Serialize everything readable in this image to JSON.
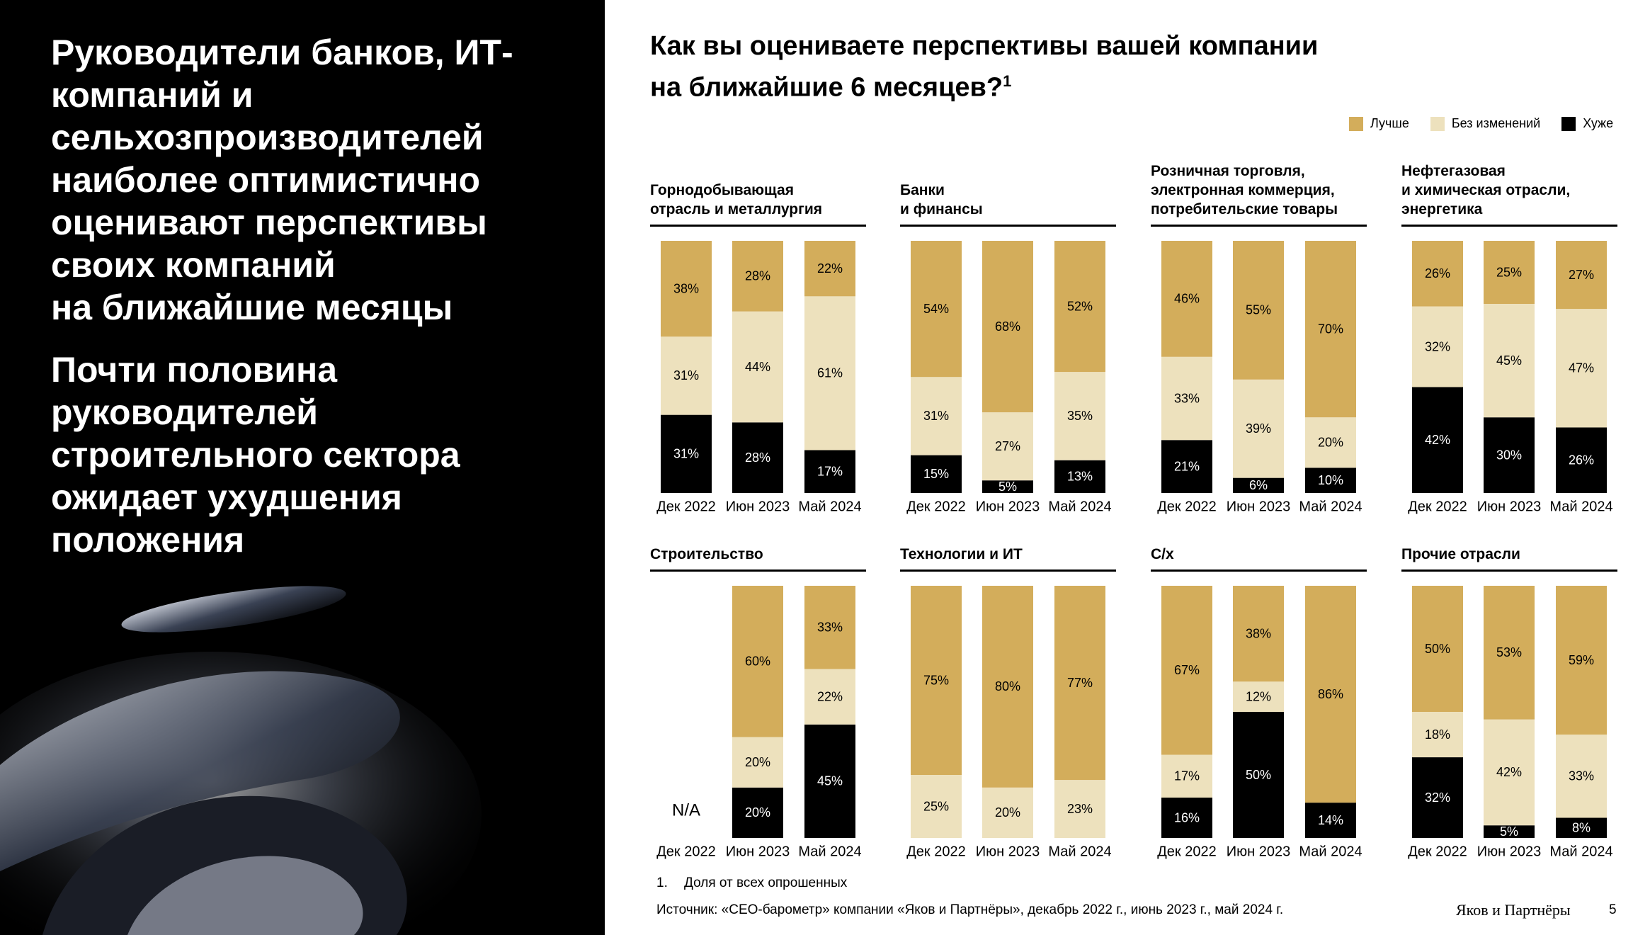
{
  "headline": [
    "Руководители банков, ИТ-\nкомпаний и\nсельхозпроизводителей\nнаиболее оптимистично\nоценивают перспективы\nсвоих компаний\nна ближайшие месяцы",
    "Почти половина\nруководителей\nстроительного сектора\nожидает ухудшения\nположения"
  ],
  "title": "Как вы оцениваете перспективы вашей компании\nна ближайшие 6 месяцев?",
  "title_note": "1",
  "footnote": {
    "marker": "1.",
    "text": "Доля от всех опрошенных"
  },
  "source": "Источник: «CEO-барометр» компании «Яков и Партнёры», декабрь 2022 г., июнь 2023 г., май 2024 г.",
  "logo": "Яков и Партнёры",
  "page": "5",
  "chart_data": [
    {
      "type": "bar",
      "stacked": true,
      "title": "Горнодобывающая\nотрасль и металлургия",
      "categories": [
        "Дек 2022",
        "Июн 2023",
        "Май 2024"
      ],
      "series": [
        {
          "name": "Лучше",
          "color": "#d3ad5b",
          "values": [
            38,
            28,
            22
          ],
          "value_labels": [
            "38%",
            "28%",
            "22%"
          ]
        },
        {
          "name": "Без изменений",
          "color": "#ede1bd",
          "values": [
            31,
            44,
            61
          ],
          "value_labels": [
            "31%",
            "44%",
            "61%"
          ]
        },
        {
          "name": "Хуже",
          "color": "#000000",
          "values": [
            31,
            28,
            17
          ],
          "value_labels": [
            "31%",
            "28%",
            "17%"
          ]
        }
      ]
    },
    {
      "type": "bar",
      "stacked": true,
      "title": "Банки\nи финансы",
      "categories": [
        "Дек 2022",
        "Июн 2023",
        "Май 2024"
      ],
      "series": [
        {
          "name": "Лучше",
          "color": "#d3ad5b",
          "values": [
            54,
            68,
            52
          ],
          "value_labels": [
            "54%",
            "68%",
            "52%"
          ]
        },
        {
          "name": "Без изменений",
          "color": "#ede1bd",
          "values": [
            31,
            27,
            35
          ],
          "value_labels": [
            "31%",
            "27%",
            "35%"
          ]
        },
        {
          "name": "Хуже",
          "color": "#000000",
          "values": [
            15,
            5,
            13
          ],
          "value_labels": [
            "15%",
            "5%",
            "13%"
          ]
        }
      ]
    },
    {
      "type": "bar",
      "stacked": true,
      "title": "Розничная торговля,\nэлектронная коммерция,\nпотребительские товары",
      "categories": [
        "Дек 2022",
        "Июн 2023",
        "Май 2024"
      ],
      "series": [
        {
          "name": "Лучше",
          "color": "#d3ad5b",
          "values": [
            46,
            55,
            70
          ],
          "value_labels": [
            "46%",
            "55%",
            "70%"
          ]
        },
        {
          "name": "Без изменений",
          "color": "#ede1bd",
          "values": [
            33,
            39,
            20
          ],
          "value_labels": [
            "33%",
            "39%",
            "20%"
          ]
        },
        {
          "name": "Хуже",
          "color": "#000000",
          "values": [
            21,
            6,
            10
          ],
          "value_labels": [
            "21%",
            "6%",
            "10%"
          ]
        }
      ]
    },
    {
      "type": "bar",
      "stacked": true,
      "title": "Нефтегазовая\nи химическая отрасли,\nэнергетика",
      "categories": [
        "Дек 2022",
        "Июн 2023",
        "Май 2024"
      ],
      "series": [
        {
          "name": "Лучше",
          "color": "#d3ad5b",
          "values": [
            26,
            25,
            27
          ],
          "value_labels": [
            "26%",
            "25%",
            "27%"
          ]
        },
        {
          "name": "Без изменений",
          "color": "#ede1bd",
          "values": [
            32,
            45,
            47
          ],
          "value_labels": [
            "32%",
            "45%",
            "47%"
          ]
        },
        {
          "name": "Хуже",
          "color": "#000000",
          "values": [
            42,
            30,
            26
          ],
          "value_labels": [
            "42%",
            "30%",
            "26%"
          ]
        }
      ]
    },
    {
      "type": "bar",
      "stacked": true,
      "title": "Строительство",
      "categories": [
        "Дек 2022",
        "Июн 2023",
        "Май 2024"
      ],
      "annotation": "N/A",
      "series": [
        {
          "name": "Лучше",
          "color": "#d3ad5b",
          "values": [
            null,
            60,
            33
          ],
          "value_labels": [
            null,
            "60%",
            "33%"
          ]
        },
        {
          "name": "Без изменений",
          "color": "#ede1bd",
          "values": [
            null,
            20,
            22
          ],
          "value_labels": [
            null,
            "20%",
            "22%"
          ]
        },
        {
          "name": "Хуже",
          "color": "#000000",
          "values": [
            null,
            20,
            45
          ],
          "value_labels": [
            null,
            "20%",
            "45%"
          ]
        }
      ]
    },
    {
      "type": "bar",
      "stacked": true,
      "title": "Технологии и ИТ",
      "categories": [
        "Дек 2022",
        "Июн 2023",
        "Май 2024"
      ],
      "series": [
        {
          "name": "Лучше",
          "color": "#d3ad5b",
          "values": [
            75,
            80,
            77
          ],
          "value_labels": [
            "75%",
            "80%",
            "77%"
          ]
        },
        {
          "name": "Без изменений",
          "color": "#ede1bd",
          "values": [
            25,
            20,
            23
          ],
          "value_labels": [
            "25%",
            "20%",
            "23%"
          ]
        },
        {
          "name": "Хуже",
          "color": "#000000",
          "values": [
            null,
            null,
            null
          ],
          "value_labels": [
            null,
            null,
            null
          ]
        }
      ]
    },
    {
      "type": "bar",
      "stacked": true,
      "title": "С/х",
      "categories": [
        "Дек 2022",
        "Июн 2023",
        "Май 2024"
      ],
      "series": [
        {
          "name": "Лучше",
          "color": "#d3ad5b",
          "values": [
            67,
            38,
            86
          ],
          "value_labels": [
            "67%",
            "38%",
            "86%"
          ]
        },
        {
          "name": "Без изменений",
          "color": "#ede1bd",
          "values": [
            17,
            12,
            null
          ],
          "value_labels": [
            "17%",
            "12%",
            null
          ]
        },
        {
          "name": "Хуже",
          "color": "#000000",
          "values": [
            16,
            50,
            14
          ],
          "value_labels": [
            "16%",
            "50%",
            "14%"
          ]
        }
      ]
    },
    {
      "type": "bar",
      "stacked": true,
      "title": "Прочие отрасли",
      "categories": [
        "Дек 2022",
        "Июн 2023",
        "Май 2024"
      ],
      "series": [
        {
          "name": "Лучше",
          "color": "#d3ad5b",
          "values": [
            50,
            53,
            59
          ],
          "value_labels": [
            "50%",
            "53%",
            "59%"
          ]
        },
        {
          "name": "Без изменений",
          "color": "#ede1bd",
          "values": [
            18,
            42,
            33
          ],
          "value_labels": [
            "18%",
            "42%",
            "33%"
          ]
        },
        {
          "name": "Хуже",
          "color": "#000000",
          "values": [
            32,
            5,
            8
          ],
          "value_labels": [
            "32%",
            "5%",
            "8%"
          ]
        }
      ]
    }
  ]
}
